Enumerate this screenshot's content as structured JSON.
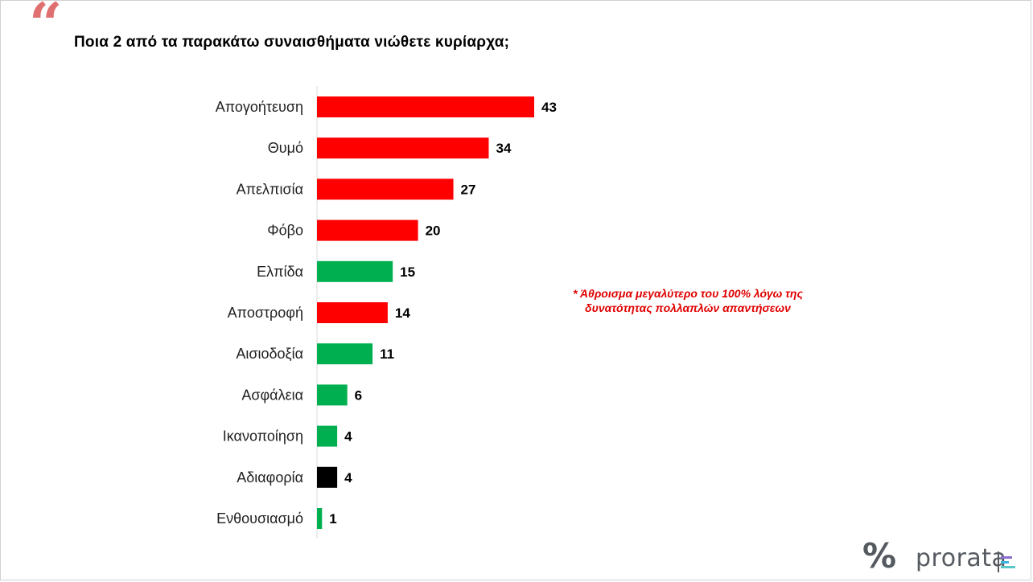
{
  "title": "Ποια 2 από τα παρακάτω συναισθήματα νιώθετε κυρίαρχα;",
  "quote_mark": "“",
  "note": {
    "line1": "* Άθροισμα μεγαλύτερο του 100% λόγω της",
    "line2": "δυνατότητας πολλαπλών απαντήσεων"
  },
  "logo": {
    "symbol": "%",
    "text": "prorata"
  },
  "colors": {
    "red": "#ff0000",
    "green": "#00b050",
    "black": "#000000",
    "quote": "#e07070",
    "note": "#e00000"
  },
  "chart_data": {
    "type": "bar",
    "orientation": "horizontal",
    "categories": [
      "Απογοήτευση",
      "Θυμό",
      "Απελπισία",
      "Φόβο",
      "Ελπίδα",
      "Αποστροφή",
      "Αισιοδοξία",
      "Ασφάλεια",
      "Ικανοποίηση",
      "Αδιαφορία",
      "Ενθουσιασμό"
    ],
    "values": [
      43,
      34,
      27,
      20,
      15,
      14,
      11,
      6,
      4,
      4,
      1
    ],
    "data_labels": [
      "43",
      "34",
      "27",
      "20",
      "15",
      "14",
      "11",
      "6",
      "4",
      "4",
      "1"
    ],
    "bar_colors": [
      "red",
      "red",
      "red",
      "red",
      "green",
      "red",
      "green",
      "green",
      "green",
      "black",
      "green"
    ],
    "xlim": [
      0,
      43
    ],
    "grid": false,
    "legend": "none"
  }
}
